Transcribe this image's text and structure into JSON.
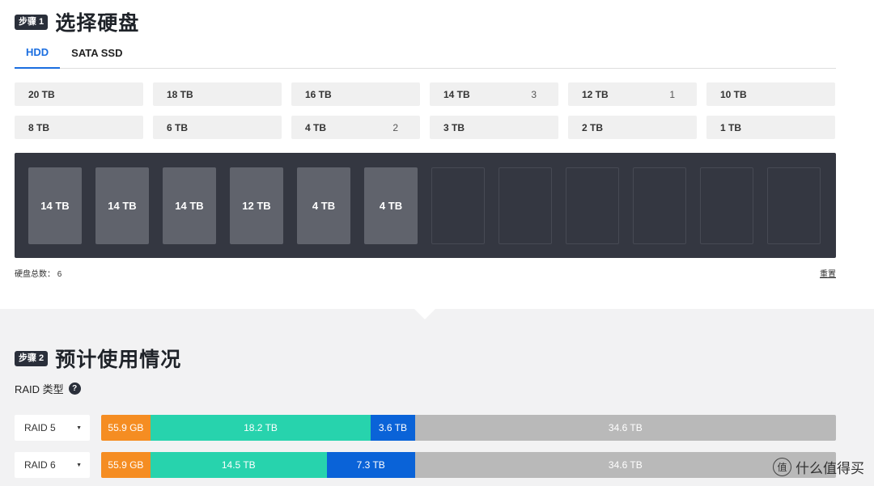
{
  "step1": {
    "badge": "步骤 1",
    "title": "选择硬盘"
  },
  "tabs": [
    {
      "label": "HDD",
      "active": true
    },
    {
      "label": "SATA SSD",
      "active": false
    }
  ],
  "capacity_chips": [
    {
      "label": "20 TB",
      "count": ""
    },
    {
      "label": "18 TB",
      "count": ""
    },
    {
      "label": "16 TB",
      "count": ""
    },
    {
      "label": "14 TB",
      "count": "3"
    },
    {
      "label": "12 TB",
      "count": "1"
    },
    {
      "label": "10 TB",
      "count": ""
    },
    {
      "label": "8 TB",
      "count": ""
    },
    {
      "label": "6 TB",
      "count": ""
    },
    {
      "label": "4 TB",
      "count": "2"
    },
    {
      "label": "3 TB",
      "count": ""
    },
    {
      "label": "2 TB",
      "count": ""
    },
    {
      "label": "1 TB",
      "count": ""
    }
  ],
  "drive_bays": [
    "14 TB",
    "14 TB",
    "14 TB",
    "12 TB",
    "4 TB",
    "4 TB",
    "",
    "",
    "",
    "",
    "",
    ""
  ],
  "total": {
    "label": "硬盘总数：",
    "value": "6"
  },
  "reset_label": "重置",
  "step2": {
    "badge": "步骤 2",
    "title": "预计使用情况"
  },
  "raid_type_label": "RAID 类型",
  "help_icon": "?",
  "raid_rows": [
    {
      "select": "RAID 5",
      "segments": [
        {
          "label": "55.9 GB",
          "color": "#f58d22",
          "fraction": 0.067
        },
        {
          "label": "18.2 TB",
          "color": "#27d3ad",
          "fraction": 0.3
        },
        {
          "label": "3.6 TB",
          "color": "#0a63d8",
          "fraction": 0.06
        },
        {
          "label": "34.6 TB",
          "color": "#b9b9b9",
          "fraction": 0.573
        }
      ]
    },
    {
      "select": "RAID 6",
      "segments": [
        {
          "label": "55.9 GB",
          "color": "#f58d22",
          "fraction": 0.067
        },
        {
          "label": "14.5 TB",
          "color": "#27d3ad",
          "fraction": 0.24
        },
        {
          "label": "7.3 TB",
          "color": "#0a63d8",
          "fraction": 0.12
        },
        {
          "label": "34.6 TB",
          "color": "#b9b9b9",
          "fraction": 0.573
        }
      ]
    }
  ],
  "watermark": {
    "icon": "值",
    "text": "什么值得买"
  }
}
